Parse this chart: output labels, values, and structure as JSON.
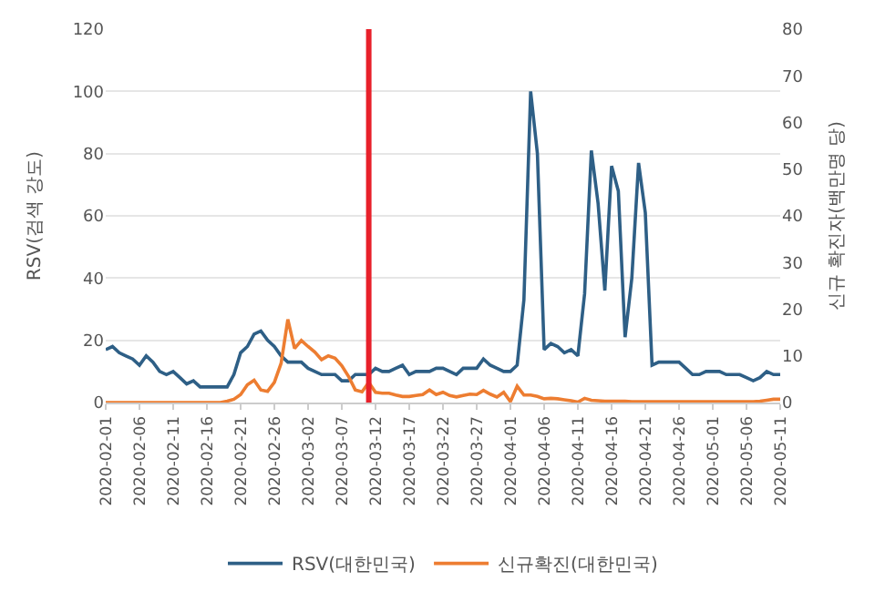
{
  "chart_data": {
    "type": "line",
    "ylabel": "RSV(검색 강도)",
    "y2label": "신규 확진자(백만명 당)",
    "x": [
      "2020-02-01",
      "2020-02-02",
      "2020-02-03",
      "2020-02-04",
      "2020-02-05",
      "2020-02-06",
      "2020-02-07",
      "2020-02-08",
      "2020-02-09",
      "2020-02-10",
      "2020-02-11",
      "2020-02-12",
      "2020-02-13",
      "2020-02-14",
      "2020-02-15",
      "2020-02-16",
      "2020-02-17",
      "2020-02-18",
      "2020-02-19",
      "2020-02-20",
      "2020-02-21",
      "2020-02-22",
      "2020-02-23",
      "2020-02-24",
      "2020-02-25",
      "2020-02-26",
      "2020-02-27",
      "2020-02-28",
      "2020-02-29",
      "2020-03-01",
      "2020-03-02",
      "2020-03-03",
      "2020-03-04",
      "2020-03-05",
      "2020-03-06",
      "2020-03-07",
      "2020-03-08",
      "2020-03-09",
      "2020-03-10",
      "2020-03-11",
      "2020-03-12",
      "2020-03-13",
      "2020-03-14",
      "2020-03-15",
      "2020-03-16",
      "2020-03-17",
      "2020-03-18",
      "2020-03-19",
      "2020-03-20",
      "2020-03-21",
      "2020-03-22",
      "2020-03-23",
      "2020-03-24",
      "2020-03-25",
      "2020-03-26",
      "2020-03-27",
      "2020-03-28",
      "2020-03-29",
      "2020-03-30",
      "2020-03-31",
      "2020-04-01",
      "2020-04-02",
      "2020-04-03",
      "2020-04-04",
      "2020-04-05",
      "2020-04-06",
      "2020-04-07",
      "2020-04-08",
      "2020-04-09",
      "2020-04-10",
      "2020-04-11",
      "2020-04-12",
      "2020-04-13",
      "2020-04-14",
      "2020-04-15",
      "2020-04-16",
      "2020-04-17",
      "2020-04-18",
      "2020-04-19",
      "2020-04-20",
      "2020-04-21",
      "2020-04-22",
      "2020-04-23",
      "2020-04-24",
      "2020-04-25",
      "2020-04-26",
      "2020-04-27",
      "2020-04-28",
      "2020-04-29",
      "2020-04-30",
      "2020-05-01",
      "2020-05-02",
      "2020-05-03",
      "2020-05-04",
      "2020-05-05",
      "2020-05-06",
      "2020-05-07",
      "2020-05-08",
      "2020-05-09",
      "2020-05-10",
      "2020-05-11"
    ],
    "series": [
      {
        "name": "RSV(대한민국)",
        "color": "#2e5f86",
        "values": [
          17,
          18,
          16,
          15,
          14,
          12,
          15,
          13,
          10,
          9,
          10,
          8,
          6,
          7,
          5,
          5,
          5,
          5,
          5,
          9,
          16,
          18,
          22,
          23,
          20,
          18,
          15,
          13,
          13,
          13,
          11,
          10,
          9,
          9,
          9,
          7,
          7,
          9,
          9,
          9,
          11,
          10,
          10,
          11,
          12,
          9,
          10,
          10,
          10,
          11,
          11,
          10,
          9,
          11,
          11,
          11,
          14,
          12,
          11,
          10,
          10,
          12,
          33,
          100,
          80,
          17,
          19,
          18,
          16,
          17,
          15,
          35,
          81,
          64,
          36,
          76,
          68,
          21,
          40,
          77,
          61,
          12,
          13,
          13,
          13,
          13,
          11,
          9,
          9,
          10,
          10,
          10,
          9,
          9,
          9,
          8,
          7,
          8,
          10,
          9,
          9
        ]
      },
      {
        "name": "신규확진(대한민국)",
        "color": "#ed7d31",
        "axis": "y2",
        "values": [
          0,
          0,
          0,
          0,
          0,
          0,
          0,
          0,
          0,
          0,
          0,
          0,
          0,
          0,
          0,
          0,
          0,
          0,
          0.3,
          0.7,
          1.7,
          3.8,
          4.8,
          2.7,
          2.4,
          4.3,
          8.4,
          17.8,
          11.6,
          13.3,
          12,
          10.8,
          9.2,
          10,
          9.5,
          7.9,
          5.6,
          2.7,
          2.3,
          4.3,
          2.2,
          2,
          2,
          1.6,
          1.3,
          1.3,
          1.5,
          1.7,
          2.7,
          1.7,
          2.2,
          1.5,
          1.2,
          1.5,
          1.8,
          1.7,
          2.6,
          1.8,
          1.2,
          2.2,
          0.2,
          3.5,
          1.6,
          1.6,
          1.3,
          0.8,
          0.9,
          0.8,
          0.6,
          0.4,
          0.1,
          0.9,
          0.5,
          0.4,
          0.3,
          0.3,
          0.3,
          0.3,
          0.2,
          0.2,
          0.2,
          0.2,
          0.2,
          0.2,
          0.2,
          0.2,
          0.2,
          0.2,
          0.2,
          0.2,
          0.2,
          0.2,
          0.2,
          0.2,
          0.2,
          0.2,
          0.2,
          0.3,
          0.5,
          0.7,
          0.7
        ]
      }
    ],
    "xlim": [
      "2020-02-01",
      "2020-05-11"
    ],
    "xticks": [
      "2020-02-01",
      "2020-02-06",
      "2020-02-11",
      "2020-02-16",
      "2020-02-21",
      "2020-02-26",
      "2020-03-02",
      "2020-03-07",
      "2020-03-12",
      "2020-03-17",
      "2020-03-22",
      "2020-03-27",
      "2020-04-01",
      "2020-04-06",
      "2020-04-11",
      "2020-04-16",
      "2020-04-21",
      "2020-04-26",
      "2020-05-01",
      "2020-05-06",
      "2020-05-11"
    ],
    "ylim": [
      0,
      120
    ],
    "yticks": [
      0,
      20,
      40,
      60,
      80,
      100,
      120
    ],
    "y2lim": [
      0,
      80
    ],
    "y2ticks": [
      0,
      10,
      20,
      30,
      40,
      50,
      60,
      70,
      80
    ],
    "ref_lines": [
      {
        "axis": "x",
        "value": "2020-03-11",
        "label": null,
        "color": "#e8202a"
      }
    ],
    "grid": "y",
    "legend": "bottom",
    "marker": "none",
    "line_style": "solid"
  }
}
